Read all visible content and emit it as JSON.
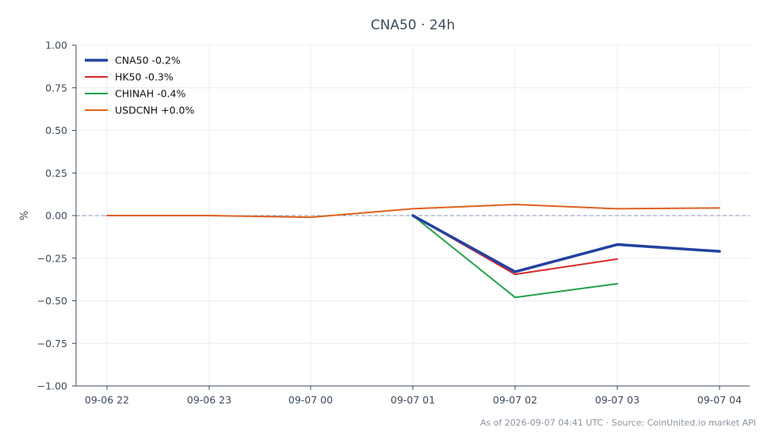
{
  "chart_data": {
    "type": "line",
    "title": "CNA50 · 24h",
    "xlabel": "",
    "ylabel": "%",
    "x": [
      "09-06 22",
      "09-06 23",
      "09-07 00",
      "09-07 01",
      "09-07 02",
      "09-07 03",
      "09-07 04"
    ],
    "ylim": [
      -1.0,
      1.0
    ],
    "yticks": [
      "1.00",
      "0.75",
      "0.50",
      "0.25",
      "0.00",
      "−0.25",
      "−0.50",
      "−0.75",
      "−1.00"
    ],
    "ytick_values": [
      1.0,
      0.75,
      0.5,
      0.25,
      0.0,
      -0.25,
      -0.5,
      -0.75,
      -1.0
    ],
    "grid": true,
    "zero_line": true,
    "legend_position": "top-left",
    "series": [
      {
        "name": "CNA50 -0.2%",
        "color": "#2342a0",
        "values": [
          null,
          null,
          null,
          0.0,
          -0.33,
          -0.17,
          -0.21
        ]
      },
      {
        "name": "HK50 -0.3%",
        "color": "#d62b2b",
        "values": [
          null,
          null,
          null,
          0.0,
          -0.345,
          -0.255,
          null
        ]
      },
      {
        "name": "CHINAH -0.4%",
        "color": "#22a04a",
        "values": [
          null,
          null,
          null,
          0.0,
          -0.48,
          -0.4,
          null
        ]
      },
      {
        "name": "USDCNH +0.0%",
        "color": "#e0621f",
        "values": [
          0.0,
          0.0,
          -0.01,
          0.04,
          0.065,
          0.04,
          0.045
        ]
      }
    ]
  },
  "footer": "As of 2026-09-07 04:41 UTC · Source: CoinUnited.io market API"
}
